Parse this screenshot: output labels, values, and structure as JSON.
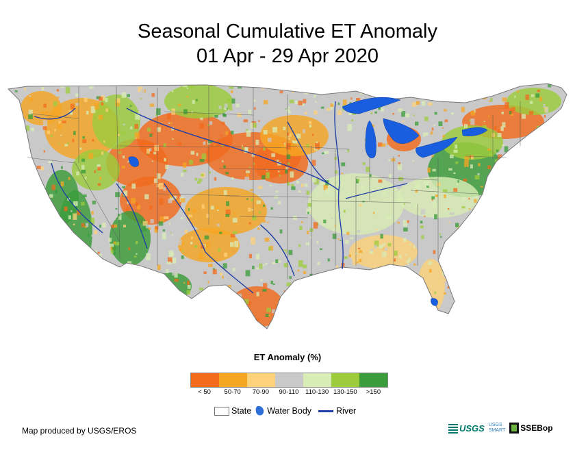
{
  "map": {
    "title_line1": "Seasonal Cumulative ET Anomaly",
    "title_line2": "01 Apr - 29 Apr 2020",
    "region": "Contiguous United States",
    "base_colors": {
      "land": "#c9c9c9",
      "water": "#1a5ee0",
      "river": "#1f3fa5",
      "state_border": "#5a5a5a"
    }
  },
  "legend": {
    "title": "ET Anomaly (%)",
    "classes": [
      {
        "label": "< 50",
        "color": "#f26b1d"
      },
      {
        "label": "50-70",
        "color": "#f5a623"
      },
      {
        "label": "70-90",
        "color": "#fdd27a"
      },
      {
        "label": "90-110",
        "color": "#c9c9c9"
      },
      {
        "label": "110-130",
        "color": "#d8ecb5"
      },
      {
        "label": "130-150",
        "color": "#9ccc3c"
      },
      {
        "label": ">150",
        "color": "#3a9c3a"
      }
    ],
    "key": {
      "state": "State",
      "water": "Water Body",
      "river": "River"
    }
  },
  "footer": {
    "credit": "Map produced by USGS/EROS",
    "logos": {
      "usgs": "USGS",
      "smart_top": "USGS",
      "smart_bottom": "SMART",
      "ssebop": "SSEBop"
    }
  }
}
